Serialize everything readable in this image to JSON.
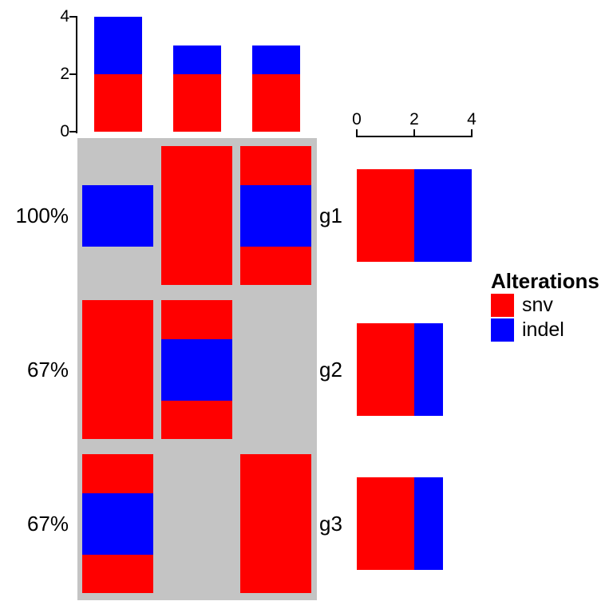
{
  "figure": {
    "kind": "oncoprint",
    "background_color": "#C4C4C4",
    "bar_red": "#FF0000",
    "bar_blue": "#0000FF"
  },
  "legend": {
    "title": "Alterations",
    "items": [
      {
        "label": "snv",
        "color": "#FF0000"
      },
      {
        "label": "indel",
        "color": "#0000FF"
      }
    ]
  },
  "chart_data": [
    {
      "id": "top_column_barplot",
      "type": "bar",
      "stacked": true,
      "orientation": "vertical",
      "n_bars": 3,
      "series": [
        {
          "name": "snv",
          "color": "#FF0000",
          "values": [
            2,
            2,
            2
          ]
        },
        {
          "name": "indel",
          "color": "#0000FF",
          "values": [
            2,
            1,
            1
          ]
        }
      ],
      "totals": [
        4,
        3,
        3
      ],
      "axis": {
        "side": "left",
        "ticks": [
          0,
          2,
          4
        ],
        "range": [
          0,
          4
        ],
        "grid": false
      }
    },
    {
      "id": "oncoprint_matrix",
      "type": "heatmap",
      "n_columns": 3,
      "background_color": "#C4C4C4",
      "alteration_colors": {
        "snv": "#FF0000",
        "indel": "#0000FF"
      },
      "rows": [
        {
          "gene": "g1",
          "pct": "100%",
          "cells": [
            [
              "indel"
            ],
            [
              "snv"
            ],
            [
              "snv",
              "indel"
            ]
          ]
        },
        {
          "gene": "g2",
          "pct": "67%",
          "cells": [
            [
              "snv"
            ],
            [
              "snv",
              "indel"
            ],
            []
          ]
        },
        {
          "gene": "g3",
          "pct": "67%",
          "cells": [
            [
              "snv",
              "indel"
            ],
            [],
            [
              "snv"
            ]
          ]
        }
      ]
    },
    {
      "id": "right_row_barplot",
      "type": "bar",
      "stacked": true,
      "orientation": "horizontal",
      "categories": [
        "g1",
        "g2",
        "g3"
      ],
      "series": [
        {
          "name": "snv",
          "color": "#FF0000",
          "values": [
            2,
            2,
            2
          ]
        },
        {
          "name": "indel",
          "color": "#0000FF",
          "values": [
            2,
            1,
            1
          ]
        }
      ],
      "totals": [
        4,
        3,
        3
      ],
      "axis": {
        "side": "top",
        "ticks": [
          0,
          2,
          4
        ],
        "range": [
          0,
          4
        ],
        "grid": false
      }
    }
  ]
}
